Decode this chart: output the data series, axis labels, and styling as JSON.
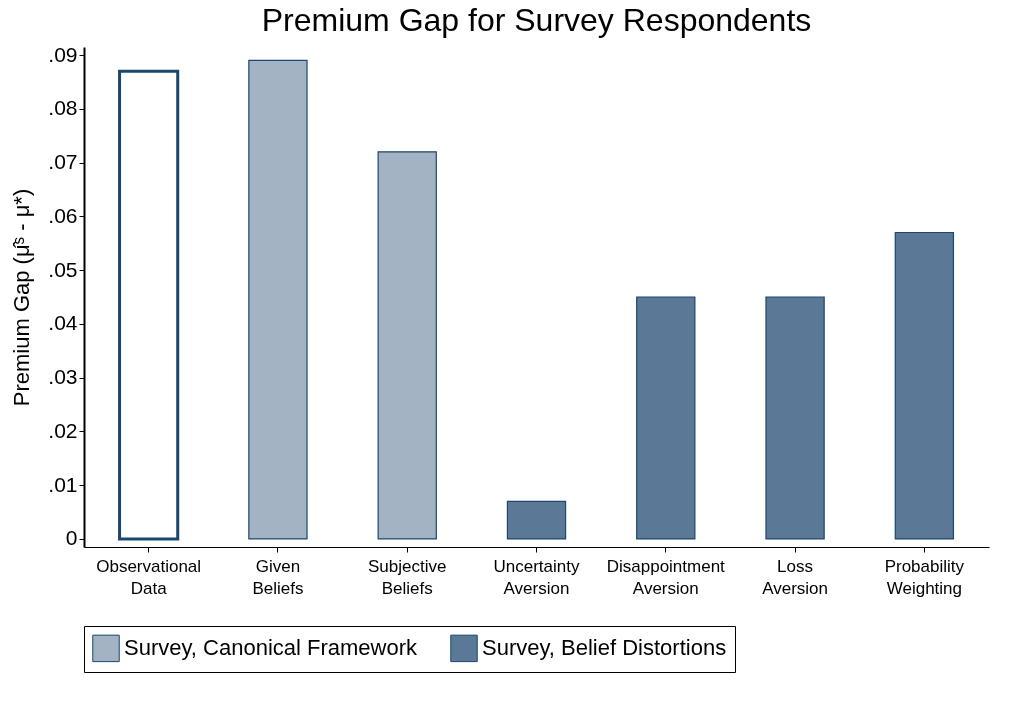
{
  "chart_data": {
    "type": "bar",
    "title": "Premium Gap for Survey Respondents",
    "ylabel": "Premium Gap (μ̂ˢ - μ*)",
    "categories": [
      "Observational Data",
      "Given Beliefs",
      "Subjective Beliefs",
      "Uncertainty Aversion",
      "Disappointment Aversion",
      "Loss Aversion",
      "Probability Weighting"
    ],
    "series": [
      {
        "color": "#ffffff",
        "values": [
          0.087,
          null,
          null,
          null,
          null,
          null,
          null
        ]
      },
      {
        "name": "Survey, Canonical Framework",
        "color": "#a3b3c4",
        "values": [
          null,
          0.089,
          0.072,
          null,
          null,
          null,
          null
        ]
      },
      {
        "name": "Survey, Belief Distortions",
        "color": "#5b7896",
        "values": [
          null,
          null,
          null,
          0.007,
          0.045,
          0.045,
          0.057
        ]
      }
    ],
    "ylim": [
      -0.0015,
      0.0915
    ],
    "yticks": [
      0,
      {
        "value": 0.01,
        "label": ".01"
      },
      {
        "value": 0.02,
        "label": ".02"
      },
      {
        "value": 0.03,
        "label": ".03"
      },
      {
        "value": 0.04,
        "label": ".04"
      },
      {
        "value": 0.05,
        "label": ".05"
      },
      {
        "value": 0.06,
        "label": ".06"
      },
      {
        "value": 0.07,
        "label": ".07"
      },
      {
        "value": 0.08,
        "label": ".08"
      },
      {
        "value": 0.09,
        "label": ".09"
      }
    ],
    "grid": false,
    "legend": "bottom"
  }
}
